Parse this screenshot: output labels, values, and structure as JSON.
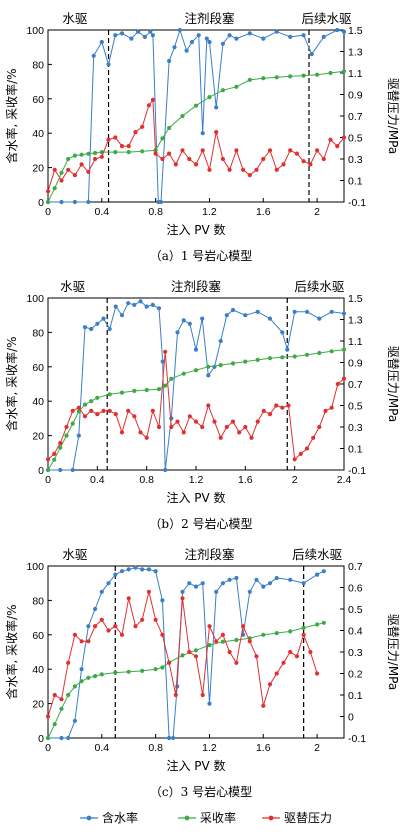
{
  "legend": [
    {
      "label": "含水率",
      "color": "#3a7fc7"
    },
    {
      "label": "采收率",
      "color": "#3daa46"
    },
    {
      "label": "驱替压力",
      "color": "#e03030"
    }
  ],
  "chart_data": [
    {
      "type": "line",
      "caption": "（a）1 号岩心模型",
      "xlabel": "注入 PV 数",
      "ylabel_left": "含水率, 采收率/%",
      "ylabel_right": "驱替压力/MPa",
      "xlim": [
        0,
        2.2
      ],
      "xticks": [
        0,
        0.4,
        0.8,
        1.2,
        1.6,
        2.0
      ],
      "ylim_left": [
        0,
        100
      ],
      "yticks_left": [
        0,
        20,
        40,
        60,
        80,
        100
      ],
      "ylim_right": [
        -0.1,
        1.5
      ],
      "yticks_right": [
        -0.1,
        0.1,
        0.3,
        0.5,
        0.7,
        0.9,
        1.1,
        1.3,
        1.5
      ],
      "phase_boundaries": [
        0.45,
        1.94
      ],
      "phases": [
        {
          "label": "水驱",
          "x": 0.2
        },
        {
          "label": "注剂段塞",
          "x": 1.2
        },
        {
          "label": "后续水驱",
          "x": 2.07
        }
      ],
      "series": [
        {
          "name": "含水率",
          "color": "#3a7fc7",
          "axis": "left",
          "x": [
            0,
            0.1,
            0.2,
            0.3,
            0.34,
            0.4,
            0.45,
            0.5,
            0.55,
            0.62,
            0.67,
            0.72,
            0.76,
            0.78,
            0.82,
            0.84,
            0.9,
            0.94,
            0.98,
            1.03,
            1.07,
            1.12,
            1.15,
            1.18,
            1.2,
            1.25,
            1.3,
            1.35,
            1.4,
            1.5,
            1.6,
            1.7,
            1.8,
            1.9,
            1.96,
            2.05,
            2.15,
            2.2
          ],
          "y": [
            0,
            0,
            0,
            0,
            85,
            93,
            80,
            97,
            98,
            95,
            99,
            96,
            99,
            97,
            0,
            0,
            82,
            90,
            100,
            88,
            93,
            97,
            40,
            95,
            93,
            55,
            92,
            97,
            95,
            98,
            95,
            99,
            96,
            97,
            86,
            96,
            100,
            99
          ]
        },
        {
          "name": "采收率",
          "color": "#3daa46",
          "axis": "left",
          "x": [
            0,
            0.05,
            0.1,
            0.15,
            0.2,
            0.25,
            0.3,
            0.35,
            0.4,
            0.5,
            0.6,
            0.7,
            0.8,
            0.85,
            0.9,
            1.0,
            1.1,
            1.2,
            1.3,
            1.4,
            1.5,
            1.6,
            1.7,
            1.8,
            1.9,
            2.0,
            2.1,
            2.2
          ],
          "y": [
            0,
            8,
            17,
            25,
            27,
            27.5,
            28,
            28.5,
            29,
            29,
            29,
            29.5,
            30,
            37,
            43,
            50,
            56,
            61,
            65,
            67,
            71,
            72,
            72.5,
            73,
            73.5,
            74,
            75,
            76
          ]
        },
        {
          "name": "驱替压力",
          "color": "#e03030",
          "axis": "right",
          "x": [
            0,
            0.05,
            0.1,
            0.15,
            0.2,
            0.25,
            0.3,
            0.35,
            0.4,
            0.45,
            0.5,
            0.55,
            0.6,
            0.65,
            0.7,
            0.75,
            0.78,
            0.8,
            0.85,
            0.9,
            0.95,
            1.0,
            1.05,
            1.1,
            1.15,
            1.2,
            1.25,
            1.3,
            1.35,
            1.4,
            1.45,
            1.5,
            1.55,
            1.6,
            1.65,
            1.7,
            1.75,
            1.8,
            1.85,
            1.9,
            1.95,
            2.0,
            2.05,
            2.1,
            2.15,
            2.2
          ],
          "y": [
            0.0,
            0.2,
            0.1,
            0.2,
            0.15,
            0.25,
            0.18,
            0.3,
            0.32,
            0.48,
            0.5,
            0.42,
            0.42,
            0.55,
            0.6,
            0.8,
            0.85,
            0.35,
            0.3,
            0.35,
            0.25,
            0.38,
            0.3,
            0.25,
            0.38,
            0.2,
            0.55,
            0.3,
            0.2,
            0.38,
            0.2,
            0.15,
            0.2,
            0.3,
            0.38,
            0.2,
            0.25,
            0.38,
            0.35,
            0.28,
            0.25,
            0.38,
            0.3,
            0.48,
            0.42,
            0.5
          ]
        }
      ]
    },
    {
      "type": "line",
      "caption": "（b）2 号岩心模型",
      "xlabel": "注入 PV 数",
      "ylabel_left": "含水率, 采收率/%",
      "ylabel_right": "驱替压力/MPa",
      "xlim": [
        0,
        2.4
      ],
      "xticks": [
        0,
        0.4,
        0.8,
        1.2,
        1.6,
        2.0,
        2.4
      ],
      "ylim_left": [
        0,
        100
      ],
      "yticks_left": [
        0,
        20,
        40,
        60,
        80,
        100
      ],
      "ylim_right": [
        -0.1,
        1.5
      ],
      "yticks_right": [
        -0.1,
        0.1,
        0.3,
        0.5,
        0.7,
        0.9,
        1.1,
        1.3,
        1.5
      ],
      "phase_boundaries": [
        0.48,
        1.94
      ],
      "phases": [
        {
          "label": "水驱",
          "x": 0.2
        },
        {
          "label": "注剂段塞",
          "x": 1.2
        },
        {
          "label": "后续水驱",
          "x": 2.2
        }
      ],
      "series": [
        {
          "name": "含水率",
          "color": "#3a7fc7",
          "axis": "left",
          "x": [
            0,
            0.1,
            0.2,
            0.25,
            0.3,
            0.35,
            0.4,
            0.45,
            0.5,
            0.55,
            0.6,
            0.65,
            0.7,
            0.75,
            0.8,
            0.85,
            0.9,
            0.93,
            0.95,
            1.0,
            1.05,
            1.1,
            1.15,
            1.2,
            1.25,
            1.3,
            1.35,
            1.4,
            1.45,
            1.5,
            1.6,
            1.7,
            1.8,
            1.9,
            1.94,
            2.0,
            2.1,
            2.2,
            2.3,
            2.4
          ],
          "y": [
            0,
            0,
            0,
            20,
            83,
            82,
            85,
            88,
            82,
            95,
            90,
            97,
            96,
            98,
            95,
            96,
            94,
            63,
            0,
            30,
            80,
            87,
            85,
            70,
            88,
            55,
            60,
            75,
            90,
            93,
            90,
            92,
            88,
            80,
            70,
            92,
            92,
            88,
            92,
            91
          ]
        },
        {
          "name": "采收率",
          "color": "#3daa46",
          "axis": "left",
          "x": [
            0,
            0.05,
            0.1,
            0.15,
            0.2,
            0.25,
            0.3,
            0.35,
            0.4,
            0.5,
            0.6,
            0.7,
            0.8,
            0.9,
            0.95,
            1.0,
            1.1,
            1.2,
            1.3,
            1.4,
            1.5,
            1.6,
            1.7,
            1.8,
            1.9,
            2.0,
            2.1,
            2.2,
            2.3,
            2.4
          ],
          "y": [
            0,
            6,
            13,
            20,
            27,
            34,
            38,
            40,
            42,
            44,
            45,
            46,
            46.5,
            47,
            49,
            53,
            56,
            58,
            60,
            61,
            62,
            63,
            64,
            65,
            65.5,
            66,
            67,
            68,
            69,
            70
          ]
        },
        {
          "name": "驱替压力",
          "color": "#e03030",
          "axis": "right",
          "x": [
            0,
            0.05,
            0.1,
            0.15,
            0.2,
            0.25,
            0.3,
            0.35,
            0.4,
            0.45,
            0.5,
            0.55,
            0.6,
            0.65,
            0.7,
            0.75,
            0.8,
            0.85,
            0.9,
            0.95,
            1.0,
            1.05,
            1.1,
            1.15,
            1.2,
            1.25,
            1.3,
            1.35,
            1.4,
            1.45,
            1.5,
            1.55,
            1.6,
            1.65,
            1.7,
            1.75,
            1.8,
            1.85,
            1.9,
            1.95,
            2.0,
            2.05,
            2.1,
            2.15,
            2.2,
            2.25,
            2.3,
            2.35,
            2.4
          ],
          "y": [
            0.0,
            0.05,
            0.15,
            0.3,
            0.45,
            0.48,
            0.4,
            0.45,
            0.42,
            0.45,
            0.45,
            0.42,
            0.25,
            0.45,
            0.4,
            0.25,
            0.2,
            0.45,
            0.3,
            1.0,
            0.3,
            0.35,
            0.25,
            0.4,
            0.35,
            0.3,
            0.5,
            0.35,
            0.2,
            0.3,
            0.35,
            0.25,
            0.3,
            0.2,
            0.35,
            0.45,
            0.42,
            0.5,
            0.48,
            0.5,
            0.0,
            0.05,
            0.1,
            0.2,
            0.3,
            0.45,
            0.48,
            0.7,
            0.75
          ]
        }
      ]
    },
    {
      "type": "line",
      "caption": "（c）3 号岩心模型",
      "xlabel": "注入 PV 数",
      "ylabel_left": "含水率, 采收率/%",
      "ylabel_right": "驱替压力/MPa",
      "xlim": [
        0,
        2.2
      ],
      "xticks": [
        0,
        0.4,
        0.8,
        1.2,
        1.6,
        2.0
      ],
      "ylim_left": [
        0,
        100
      ],
      "yticks_left": [
        0,
        20,
        40,
        60,
        80,
        100
      ],
      "ylim_right": [
        -0.1,
        0.7
      ],
      "yticks_right": [
        -0.1,
        0,
        0.1,
        0.2,
        0.3,
        0.4,
        0.5,
        0.6,
        0.7
      ],
      "phase_boundaries": [
        0.5,
        1.9
      ],
      "phases": [
        {
          "label": "水驱",
          "x": 0.2
        },
        {
          "label": "注剂段塞",
          "x": 1.2
        },
        {
          "label": "后续水驱",
          "x": 2.0
        }
      ],
      "series": [
        {
          "name": "含水率",
          "color": "#3a7fc7",
          "axis": "left",
          "x": [
            0,
            0.1,
            0.15,
            0.2,
            0.25,
            0.3,
            0.35,
            0.4,
            0.45,
            0.5,
            0.55,
            0.6,
            0.65,
            0.7,
            0.75,
            0.8,
            0.85,
            0.9,
            0.93,
            0.96,
            1.0,
            1.05,
            1.1,
            1.15,
            1.2,
            1.25,
            1.3,
            1.35,
            1.4,
            1.45,
            1.5,
            1.55,
            1.6,
            1.65,
            1.7,
            1.8,
            1.9,
            2.0,
            2.05
          ],
          "y": [
            0,
            0,
            0,
            10,
            40,
            65,
            75,
            85,
            90,
            95,
            97,
            98,
            99,
            98,
            98,
            97,
            80,
            0,
            0,
            30,
            85,
            90,
            88,
            90,
            20,
            85,
            90,
            92,
            93,
            60,
            85,
            92,
            88,
            90,
            93,
            92,
            90,
            95,
            97
          ]
        },
        {
          "name": "采收率",
          "color": "#3daa46",
          "axis": "left",
          "x": [
            0,
            0.05,
            0.1,
            0.15,
            0.2,
            0.25,
            0.3,
            0.35,
            0.4,
            0.5,
            0.6,
            0.7,
            0.8,
            0.85,
            0.9,
            1.0,
            1.1,
            1.2,
            1.3,
            1.4,
            1.5,
            1.6,
            1.7,
            1.8,
            1.9,
            2.0,
            2.05
          ],
          "y": [
            0,
            8,
            17,
            25,
            30,
            33,
            35,
            36,
            37,
            38,
            38.5,
            39,
            40,
            41,
            44,
            48,
            51,
            54,
            56,
            57,
            58,
            60,
            61,
            62,
            64,
            66,
            67
          ]
        },
        {
          "name": "驱替压力",
          "color": "#e03030",
          "axis": "right",
          "x": [
            0,
            0.05,
            0.1,
            0.15,
            0.2,
            0.25,
            0.3,
            0.35,
            0.4,
            0.45,
            0.5,
            0.55,
            0.6,
            0.65,
            0.7,
            0.75,
            0.8,
            0.85,
            0.9,
            0.95,
            1.0,
            1.05,
            1.1,
            1.15,
            1.2,
            1.25,
            1.3,
            1.35,
            1.4,
            1.45,
            1.5,
            1.55,
            1.6,
            1.65,
            1.7,
            1.75,
            1.8,
            1.85,
            1.9,
            1.95,
            2.0
          ],
          "y": [
            0.0,
            0.1,
            0.08,
            0.25,
            0.38,
            0.35,
            0.35,
            0.42,
            0.45,
            0.4,
            0.42,
            0.38,
            0.55,
            0.42,
            0.45,
            0.58,
            0.45,
            0.38,
            0.25,
            0.1,
            0.55,
            0.3,
            0.28,
            0.1,
            0.42,
            0.35,
            0.38,
            0.3,
            0.25,
            0.42,
            0.35,
            0.28,
            0.05,
            0.15,
            0.2,
            0.25,
            0.3,
            0.28,
            0.38,
            0.3,
            0.2
          ]
        }
      ]
    }
  ]
}
